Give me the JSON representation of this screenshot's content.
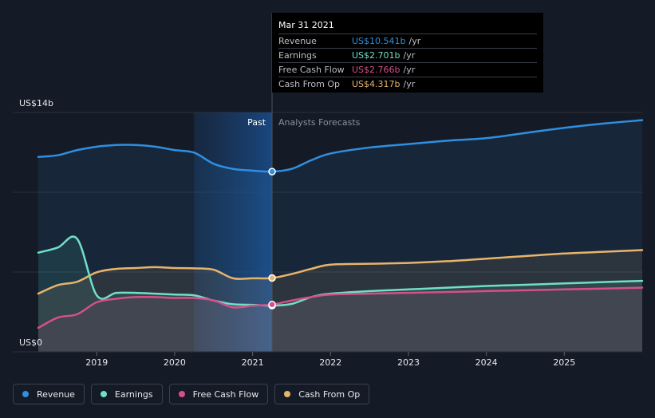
{
  "tooltip": {
    "date": "Mar 31 2021",
    "rows": [
      {
        "label": "Revenue",
        "value": "US$10.541b",
        "unit": "/yr",
        "color": "#2f8fe0"
      },
      {
        "label": "Earnings",
        "value": "US$2.701b",
        "unit": "/yr",
        "color": "#6fe0c8"
      },
      {
        "label": "Free Cash Flow",
        "value": "US$2.766b",
        "unit": "/yr",
        "color": "#d64f8a"
      },
      {
        "label": "Cash From Op",
        "value": "US$4.317b",
        "unit": "/yr",
        "color": "#e8b46c"
      }
    ]
  },
  "legend": [
    {
      "label": "Revenue",
      "color": "#2f8fe0"
    },
    {
      "label": "Earnings",
      "color": "#6fe0c8"
    },
    {
      "label": "Free Cash Flow",
      "color": "#d64f8a"
    },
    {
      "label": "Cash From Op",
      "color": "#e8b46c"
    }
  ],
  "chart_data": {
    "type": "area",
    "ylabel_top": "US$14b",
    "ylabel_bottom": "US$0",
    "ylim": [
      0,
      14
    ],
    "xlim": [
      2018.25,
      2026.0
    ],
    "x_ticks": [
      2019,
      2020,
      2021,
      2022,
      2023,
      2024,
      2025
    ],
    "x_tick_labels": [
      "2019",
      "2020",
      "2021",
      "2022",
      "2023",
      "2024",
      "2025"
    ],
    "past_label": "Past",
    "forecast_label": "Analysts Forecasts",
    "divider_x": 2021.25,
    "highlight_start_x": 2020.25,
    "series": [
      {
        "name": "Revenue",
        "color": "#2f8fe0",
        "points": [
          [
            2018.25,
            11.4
          ],
          [
            2018.5,
            11.5
          ],
          [
            2018.75,
            11.8
          ],
          [
            2019.0,
            12.0
          ],
          [
            2019.25,
            12.1
          ],
          [
            2019.5,
            12.1
          ],
          [
            2019.75,
            12.0
          ],
          [
            2020.0,
            11.8
          ],
          [
            2020.25,
            11.65
          ],
          [
            2020.5,
            11.0
          ],
          [
            2020.75,
            10.7
          ],
          [
            2021.0,
            10.6
          ],
          [
            2021.25,
            10.541
          ],
          [
            2021.5,
            10.7
          ],
          [
            2021.75,
            11.2
          ],
          [
            2022.0,
            11.6
          ],
          [
            2022.5,
            11.95
          ],
          [
            2023.0,
            12.15
          ],
          [
            2023.5,
            12.35
          ],
          [
            2024.0,
            12.5
          ],
          [
            2024.5,
            12.8
          ],
          [
            2025.0,
            13.1
          ],
          [
            2025.5,
            13.35
          ],
          [
            2026.0,
            13.55
          ]
        ]
      },
      {
        "name": "Cash From Op",
        "color": "#e8b46c",
        "points": [
          [
            2018.25,
            3.4
          ],
          [
            2018.5,
            3.9
          ],
          [
            2018.75,
            4.1
          ],
          [
            2019.0,
            4.65
          ],
          [
            2019.25,
            4.85
          ],
          [
            2019.5,
            4.9
          ],
          [
            2019.75,
            4.95
          ],
          [
            2020.0,
            4.9
          ],
          [
            2020.25,
            4.88
          ],
          [
            2020.5,
            4.8
          ],
          [
            2020.75,
            4.3
          ],
          [
            2021.0,
            4.3
          ],
          [
            2021.25,
            4.317
          ],
          [
            2021.5,
            4.55
          ],
          [
            2021.75,
            4.85
          ],
          [
            2022.0,
            5.1
          ],
          [
            2022.5,
            5.15
          ],
          [
            2023.0,
            5.2
          ],
          [
            2023.5,
            5.3
          ],
          [
            2024.0,
            5.45
          ],
          [
            2024.5,
            5.6
          ],
          [
            2025.0,
            5.75
          ],
          [
            2025.5,
            5.85
          ],
          [
            2026.0,
            5.95
          ]
        ]
      },
      {
        "name": "Earnings",
        "color": "#6fe0c8",
        "points": [
          [
            2018.25,
            5.8
          ],
          [
            2018.5,
            6.1
          ],
          [
            2018.75,
            6.6
          ],
          [
            2019.0,
            3.3
          ],
          [
            2019.25,
            3.45
          ],
          [
            2019.5,
            3.45
          ],
          [
            2019.75,
            3.4
          ],
          [
            2020.0,
            3.35
          ],
          [
            2020.25,
            3.3
          ],
          [
            2020.5,
            3.0
          ],
          [
            2020.75,
            2.78
          ],
          [
            2021.0,
            2.75
          ],
          [
            2021.25,
            2.701
          ],
          [
            2021.5,
            2.8
          ],
          [
            2021.75,
            3.2
          ],
          [
            2022.0,
            3.4
          ],
          [
            2022.5,
            3.55
          ],
          [
            2023.0,
            3.65
          ],
          [
            2023.5,
            3.75
          ],
          [
            2024.0,
            3.85
          ],
          [
            2024.5,
            3.92
          ],
          [
            2025.0,
            4.0
          ],
          [
            2025.5,
            4.08
          ],
          [
            2026.0,
            4.15
          ]
        ]
      },
      {
        "name": "Free Cash Flow",
        "color": "#d64f8a",
        "points": [
          [
            2018.25,
            1.4
          ],
          [
            2018.5,
            2.0
          ],
          [
            2018.75,
            2.2
          ],
          [
            2019.0,
            2.9
          ],
          [
            2019.25,
            3.1
          ],
          [
            2019.5,
            3.2
          ],
          [
            2019.75,
            3.2
          ],
          [
            2020.0,
            3.15
          ],
          [
            2020.25,
            3.15
          ],
          [
            2020.5,
            3.0
          ],
          [
            2020.75,
            2.6
          ],
          [
            2021.0,
            2.7
          ],
          [
            2021.25,
            2.766
          ],
          [
            2021.5,
            3.0
          ],
          [
            2021.75,
            3.2
          ],
          [
            2022.0,
            3.35
          ],
          [
            2022.5,
            3.4
          ],
          [
            2023.0,
            3.45
          ],
          [
            2023.5,
            3.5
          ],
          [
            2024.0,
            3.55
          ],
          [
            2024.5,
            3.6
          ],
          [
            2025.0,
            3.65
          ],
          [
            2025.5,
            3.7
          ],
          [
            2026.0,
            3.75
          ]
        ]
      }
    ]
  }
}
